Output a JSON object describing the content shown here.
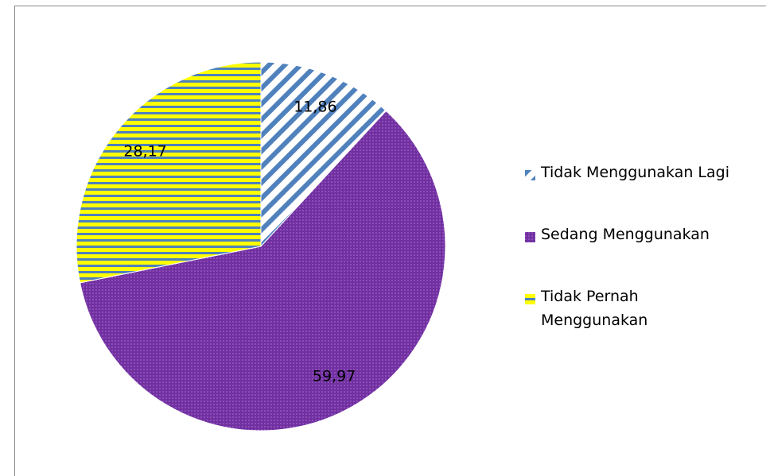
{
  "chart_data": {
    "type": "pie",
    "categories": [
      "Tidak Menggunakan Lagi",
      "Sedang Menggunakan",
      "Tidak Pernah Menggunakan"
    ],
    "values": [
      11.86,
      59.97,
      28.17
    ],
    "value_labels": [
      "11,86",
      "59,97",
      "28,17"
    ],
    "colors": [
      "#4f81bd",
      "#7030a0",
      "#ffff00"
    ],
    "legend": "right"
  }
}
